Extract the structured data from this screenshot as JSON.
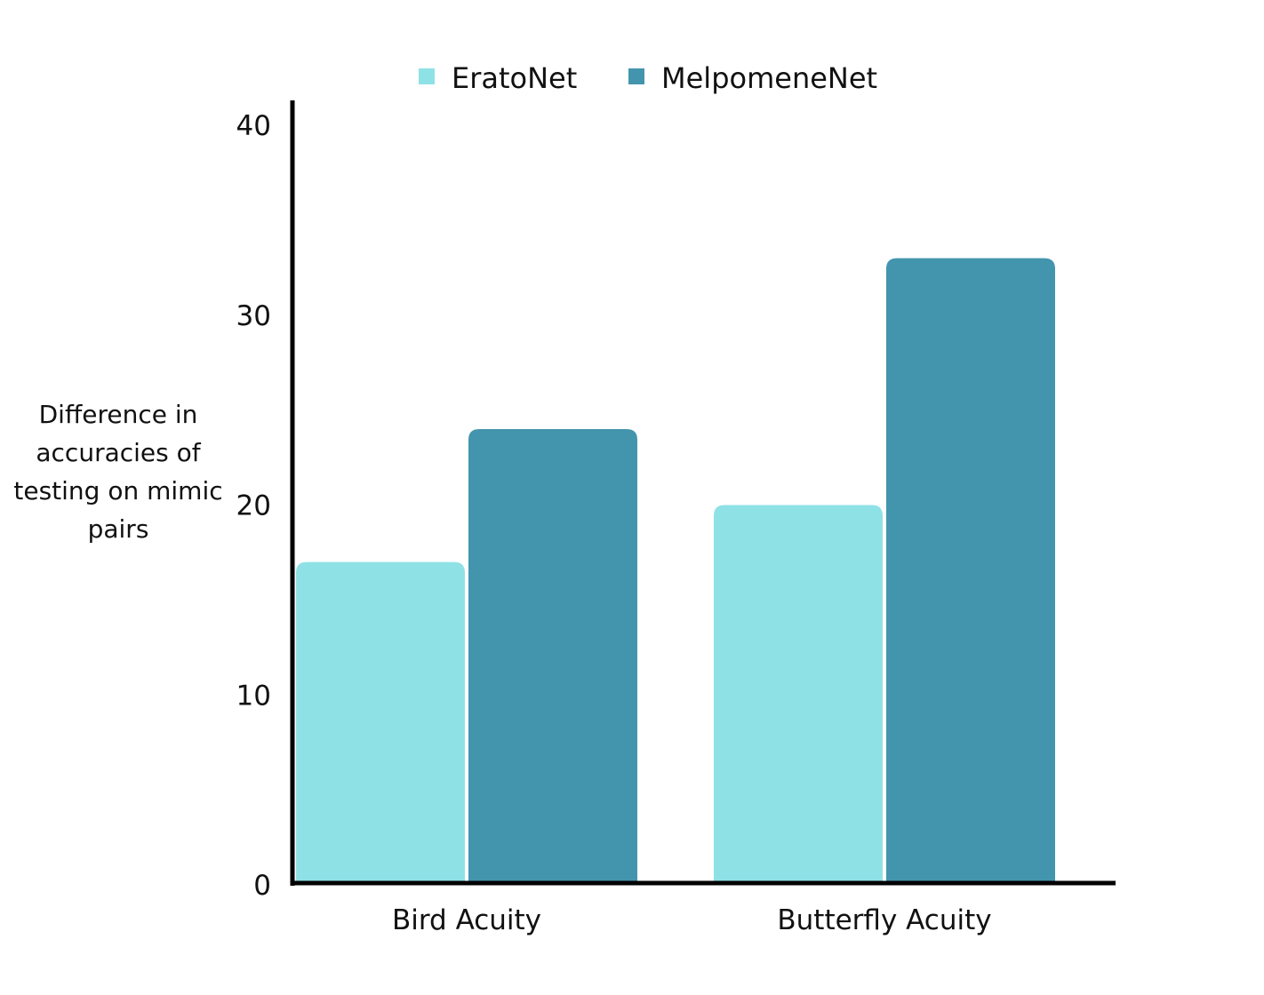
{
  "chart_data": {
    "type": "bar",
    "categories": [
      "Bird Acuity",
      "Butterfly Acuity"
    ],
    "series": [
      {
        "name": "EratoNet",
        "values": [
          17,
          20
        ],
        "color": "#8ee2e6"
      },
      {
        "name": "MelpomeneNet",
        "values": [
          24,
          33
        ],
        "color": "#4395ae"
      }
    ],
    "ylabel_lines": [
      "Difference in",
      "accuracies of",
      "testing on mimic",
      "pairs"
    ],
    "xlabel": "",
    "ylim": [
      0,
      40
    ],
    "yticks": [
      "0",
      "10",
      "20",
      "30",
      "40"
    ],
    "grid": false,
    "legend_position": "top-center",
    "axis_color": "#000000"
  }
}
